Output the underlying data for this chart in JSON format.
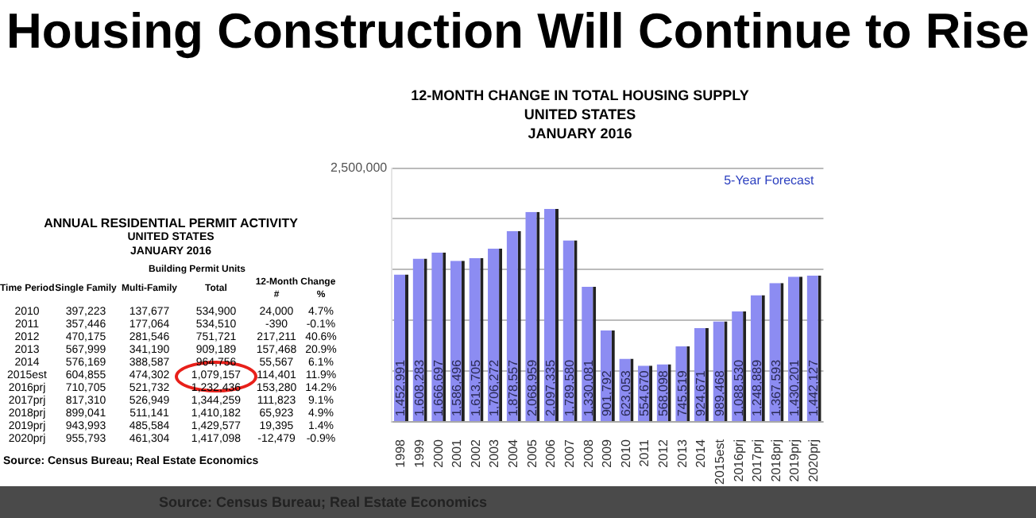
{
  "chart_data": {
    "type": "bar",
    "title": "Housing Construction Will Continue to Rise",
    "subtitle": "12-MONTH CHANGE IN TOTAL HOUSING SUPPLY\nUNITED STATES\nJANUARY 2016",
    "categories": [
      "1998",
      "1999",
      "2000",
      "2001",
      "2002",
      "2003",
      "2004",
      "2005",
      "2006",
      "2007",
      "2008",
      "2009",
      "2010",
      "2011",
      "2012",
      "2013",
      "2014",
      "2015est",
      "2016prj",
      "2017prj",
      "2018prj",
      "2019prj",
      "2020prj"
    ],
    "values": [
      1452991,
      1608283,
      1666697,
      1586496,
      1613705,
      1706272,
      1878557,
      2068959,
      2097335,
      1789580,
      1330081,
      901792,
      623053,
      554670,
      568098,
      745519,
      924671,
      989468,
      1088530,
      1248889,
      1367593,
      1430201,
      1442127
    ],
    "value_labels": [
      "1,452,991",
      "1,608,283",
      "1,666,697",
      "1,586,496",
      "1,613,705",
      "1,706,272",
      "1,878,557",
      "2,068,959",
      "2,097,335",
      "1,789,580",
      "1,330,081",
      "901,792",
      "623,053",
      "554,670",
      "568,098",
      "745,519",
      "924,671",
      "989,468",
      "1,088,530",
      "1,248,889",
      "1,367,593",
      "1,430,201",
      "1,442,127"
    ],
    "color": "#8c8cf2",
    "ylim": [
      0,
      2500000
    ],
    "yticks": [
      {
        "value": 0,
        "label": null
      },
      {
        "value": 500000,
        "label": null
      },
      {
        "value": 1000000,
        "label": null
      },
      {
        "value": 1500000,
        "label": null
      },
      {
        "value": 2000000,
        "label": null
      },
      {
        "value": 2500000,
        "label": "2,500,000"
      }
    ],
    "grid": "y",
    "annotations": [
      "5-Year Forecast",
      "Source: Census Bureau; Real Estate Economics",
      "ANNUAL RESIDENTIAL PERMIT ACTIVITY",
      "UNITED STATES",
      "JANUARY 2016",
      "Building Permit Units",
      "12-Month Change",
      "Time Period",
      "Single Family",
      "Multi-Family",
      "Total",
      "#",
      "%",
      "2010",
      "397,223",
      "137,677",
      "534,900",
      "24,000",
      "4.7%",
      "2011",
      "357,446",
      "177,064",
      "534,510",
      "-390",
      "-0.1%",
      "2012",
      "470,175",
      "281,546",
      "751,721",
      "217,211",
      "40.6%",
      "2013",
      "567,999",
      "341,190",
      "909,189",
      "157,468",
      "20.9%",
      "2014",
      "576,169",
      "388,587",
      "964,756",
      "55,567",
      "6.1%",
      "2015est",
      "604,855",
      "474,302",
      "1,079,157",
      "114,401",
      "11.9%",
      "2016prj",
      "710,705",
      "521,732",
      "1,232,436",
      "153,280",
      "14.2%",
      "2017prj",
      "817,310",
      "526,949",
      "1,344,259",
      "111,823",
      "9.1%",
      "2018prj",
      "899,041",
      "511,141",
      "1,410,182",
      "65,923",
      "4.9%",
      "2019prj",
      "943,993",
      "485,584",
      "1,429,577",
      "19,395",
      "1.4%",
      "2020prj",
      "955,793",
      "461,304",
      "1,417,098",
      "-12,479",
      "-0.9%",
      "Source: Census Bureau; Real Estate Economics"
    ]
  }
}
